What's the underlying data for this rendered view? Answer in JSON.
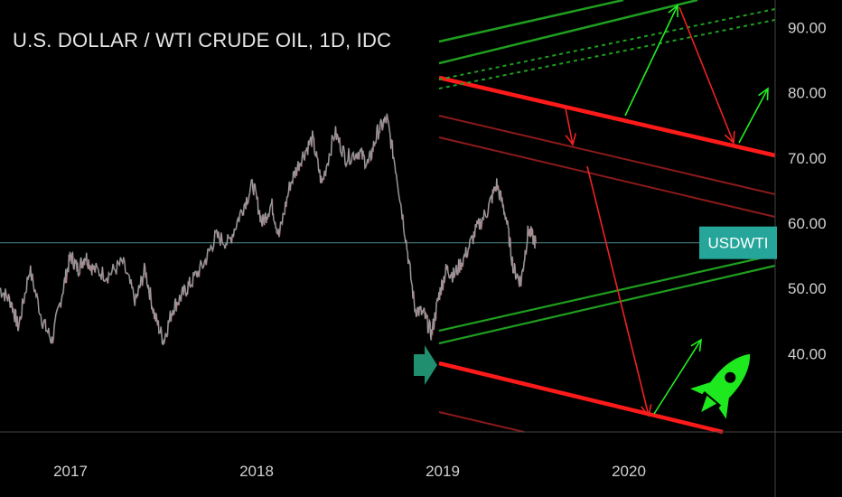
{
  "chart_data": {
    "type": "line",
    "title": "U.S. DOLLAR / WTI CRUDE OIL, 1D, IDC",
    "symbol_tag": "USDWTI",
    "current_value": 57.0,
    "x_tick_labels": [
      "2017",
      "2018",
      "2019",
      "2020"
    ],
    "y_tick_labels": [
      "40.00",
      "50.00",
      "60.00",
      "70.00",
      "80.00",
      "90.00"
    ],
    "ylim": [
      28,
      92
    ],
    "series": [
      {
        "x": [
          2016.62,
          2016.68,
          2016.72,
          2016.78,
          2016.85,
          2016.9,
          2016.96,
          2017.0,
          2017.04,
          2017.08,
          2017.12,
          2017.2,
          2017.28,
          2017.35,
          2017.4,
          2017.45,
          2017.5,
          2017.55,
          2017.6,
          2017.65,
          2017.72,
          2017.78,
          2017.85,
          2017.92,
          2017.98,
          2018.03,
          2018.08,
          2018.12,
          2018.18,
          2018.24,
          2018.3,
          2018.35,
          2018.42,
          2018.48,
          2018.55,
          2018.6,
          2018.65,
          2018.7,
          2018.75,
          2018.8,
          2018.85,
          2018.9,
          2018.94,
          2018.98,
          2019.02,
          2019.06,
          2019.12,
          2019.18,
          2019.24,
          2019.29,
          2019.34,
          2019.38,
          2019.42,
          2019.46,
          2019.5
        ],
        "values": [
          50,
          48,
          44,
          53,
          45,
          42,
          50,
          55,
          53,
          55,
          53,
          52,
          54,
          48,
          53,
          46,
          42,
          47,
          49,
          51,
          54,
          58,
          57,
          62,
          66,
          60,
          63,
          58,
          66,
          70,
          73,
          66,
          74,
          70,
          71,
          69,
          74,
          76,
          68,
          58,
          47,
          46,
          43,
          49,
          53,
          52,
          55,
          59,
          62,
          66,
          61,
          53,
          51,
          59,
          57
        ]
      }
    ],
    "grid": false,
    "colors": {
      "price": "#8fa3a8",
      "price_highlight": "#c46a6a",
      "red_channel": "#ff1a1a",
      "dark_red_channel": "#8b1a1a",
      "green_channel": "#1f9e1f",
      "green_arrow": "#22ee22",
      "red_arrow": "#ee2222",
      "tag_bg": "#26a69a",
      "rocket": "#1ee81e",
      "pointer_arrow": "#1f8f6f",
      "current_line": "#3f6f70"
    },
    "icons": [
      "rocket-icon",
      "right-pointer-arrow-icon"
    ]
  }
}
